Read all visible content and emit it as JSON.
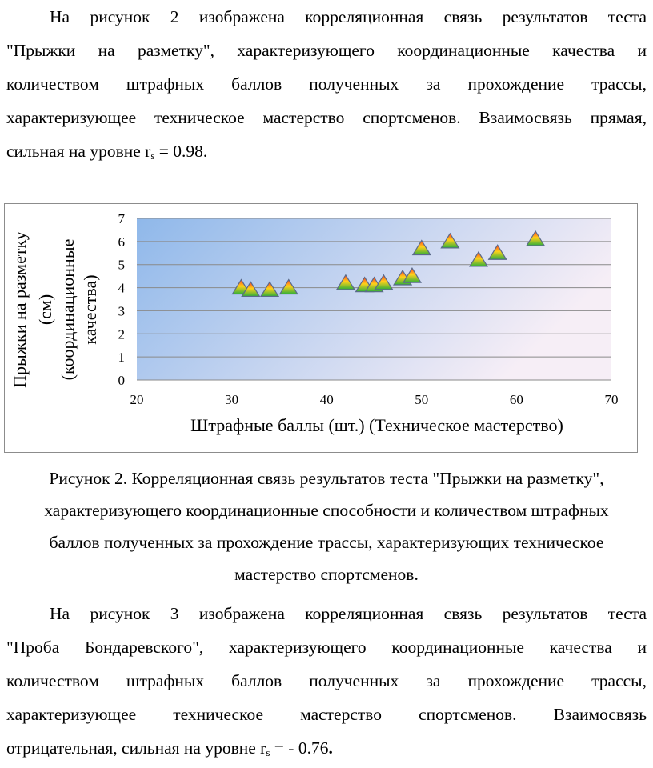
{
  "paragraph1": {
    "lines": [
      "На рисунок 2 изображена корреляционная связь результатов теста",
      "\"Прыжки на разметку\", характеризующего координационные качества и",
      "количеством штрафных баллов полученных за прохождение трассы,",
      "характеризующее техническое мастерство спортсменов. Взаимосвязь прямая,"
    ],
    "last_prefix": "сильная на уровне  r",
    "last_sub": "s",
    "last_suffix": " = 0.98."
  },
  "chart_data": {
    "type": "scatter",
    "title": "",
    "xlabel": "Штрафные  баллы  (шт.) (Техническое мастерство)",
    "ylabel_lines": [
      "Прыжки  на разметку",
      "(см)",
      "(координационные",
      "качества)"
    ],
    "xlim": [
      20,
      70
    ],
    "ylim": [
      0,
      7
    ],
    "xticks": [
      20,
      30,
      40,
      50,
      60,
      70
    ],
    "yticks": [
      0,
      1,
      2,
      3,
      4,
      5,
      6,
      7
    ],
    "grid": true,
    "marker": "triangle",
    "points": [
      {
        "x": 31,
        "y": 4.0
      },
      {
        "x": 32,
        "y": 3.9
      },
      {
        "x": 34,
        "y": 3.9
      },
      {
        "x": 36,
        "y": 4.0
      },
      {
        "x": 42,
        "y": 4.2
      },
      {
        "x": 44,
        "y": 4.1
      },
      {
        "x": 45,
        "y": 4.1
      },
      {
        "x": 46,
        "y": 4.2
      },
      {
        "x": 48,
        "y": 4.4
      },
      {
        "x": 49,
        "y": 4.5
      },
      {
        "x": 50,
        "y": 5.7
      },
      {
        "x": 53,
        "y": 6.0
      },
      {
        "x": 56,
        "y": 5.2
      },
      {
        "x": 58,
        "y": 5.5
      },
      {
        "x": 62,
        "y": 6.1
      }
    ],
    "colors": {
      "plot_left": "#8fb8ea",
      "plot_right": "#f6eef6",
      "grid": "#8a8a8a",
      "marker_stroke": "#5a6a8a"
    }
  },
  "caption": {
    "lines": [
      "Рисунок 2. Корреляционная связь результатов теста \"Прыжки на разметку\",",
      "характеризующего координационные способности и количеством штрафных",
      "баллов полученных за прохождение трассы, характеризующих техническое",
      "мастерство спортсменов."
    ]
  },
  "paragraph2": {
    "lines": [
      "На рисунок 3 изображена корреляционная связь результатов теста",
      "\"Проба Бондаревского\", характеризующего координационные качества и",
      "количеством штрафных баллов полученных за прохождение трассы,",
      "характеризующее техническое мастерство спортсменов. Взаимосвязь"
    ],
    "last_prefix": "отрицательная, сильная на уровне  r",
    "last_sub": "s",
    "last_suffix": " = - 0.76",
    "last_bold": "."
  }
}
